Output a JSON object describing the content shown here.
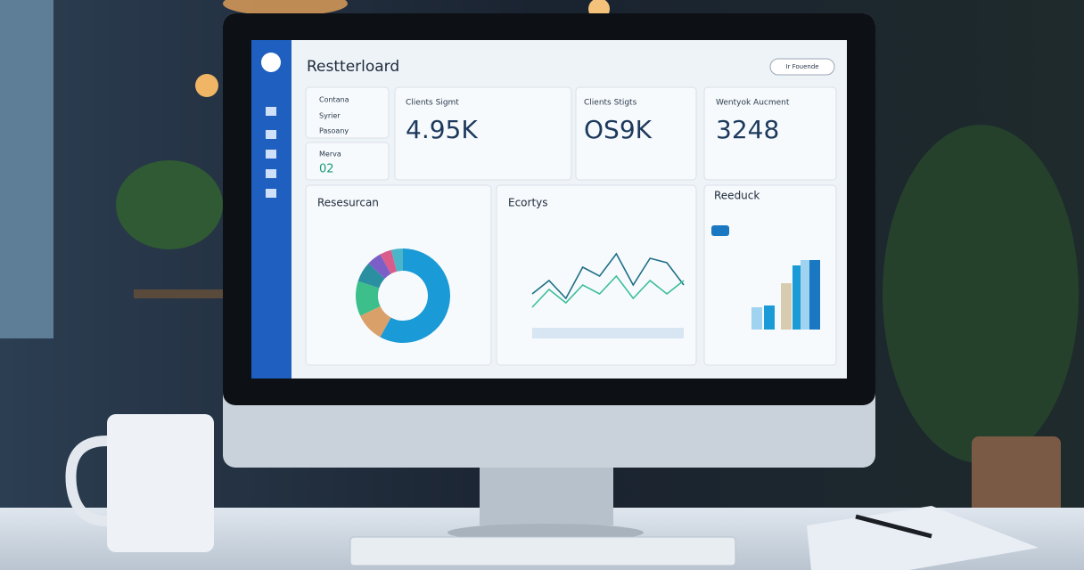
{
  "header": {
    "title": "Restterloard",
    "button": "Ir Fouende"
  },
  "sidebar_list": [
    "Contana",
    "Syrier",
    "Pasoany"
  ],
  "mini_card": {
    "label": "Merva",
    "value": "02"
  },
  "kpis": [
    {
      "label": "Clients Sigmt",
      "value": "4.95K"
    },
    {
      "label": "Clients Stigts",
      "value": "OS9K"
    },
    {
      "label": "Wentyok Aucment",
      "value": "3248"
    }
  ],
  "panels": {
    "donut": {
      "title": "Resesurcan",
      "values": [
        58,
        10,
        12,
        7,
        5,
        4,
        4
      ],
      "colors": [
        "#1a9ad6",
        "#d9a06a",
        "#3cbf8a",
        "#2a8fa0",
        "#7b5fc7",
        "#d95c8a",
        "#4bb5c9"
      ]
    },
    "line": {
      "title": "Ecortys",
      "series": [
        {
          "color": "#1f6f86",
          "values": [
            40,
            55,
            35,
            70,
            60,
            85,
            50,
            80,
            75,
            50
          ]
        },
        {
          "color": "#3cbf9a",
          "values": [
            25,
            45,
            30,
            50,
            40,
            60,
            35,
            55,
            40,
            55
          ]
        }
      ]
    },
    "bars": {
      "title": "Reeduck",
      "values": [
        25,
        27,
        52,
        72,
        78,
        78
      ],
      "colors": [
        "#9fd3ef",
        "#1a9ad6",
        "#d8ccb0",
        "#1a9ad6",
        "#9fd3ef",
        "#1a78c2"
      ]
    }
  }
}
